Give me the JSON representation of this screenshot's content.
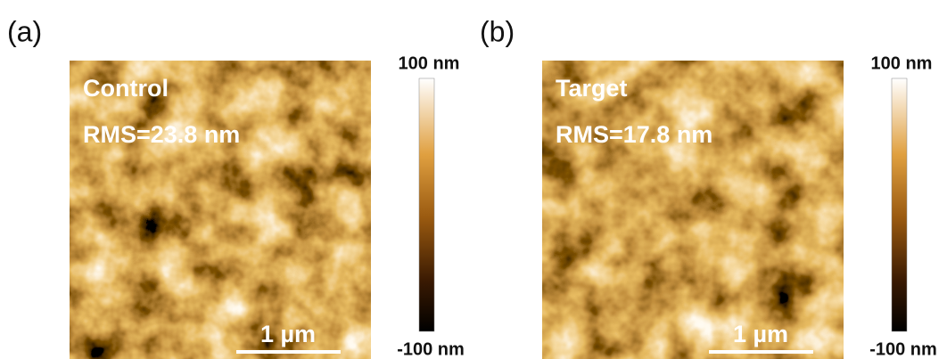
{
  "panels": [
    {
      "label": "(a)",
      "title": "Control",
      "rms": "RMS=23.8 nm",
      "scale_bar": "1 µm",
      "colorbar": {
        "max": "100 nm",
        "min": "-100 nm"
      }
    },
    {
      "label": "(b)",
      "title": "Target",
      "rms": "RMS=17.8 nm",
      "scale_bar": "1 µm",
      "colorbar": {
        "max": "100 nm",
        "min": "-100 nm"
      }
    }
  ]
}
